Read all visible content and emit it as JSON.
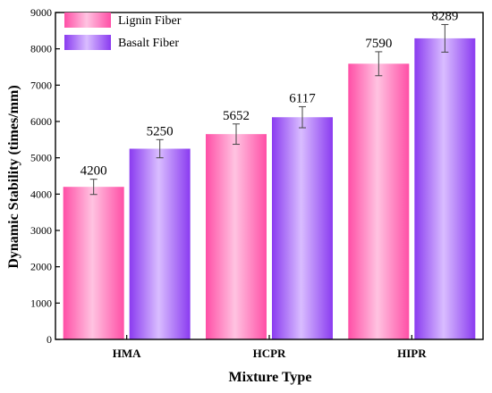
{
  "chart_data": {
    "type": "bar",
    "title": "",
    "xlabel": "Mixture Type",
    "ylabel": "Dynamic Stability (times/mm)",
    "ylim": [
      0,
      9000
    ],
    "yticks": [
      0,
      1000,
      2000,
      3000,
      4000,
      5000,
      6000,
      7000,
      8000,
      9000
    ],
    "categories": [
      "HMA",
      "HCPR",
      "HIPR"
    ],
    "series": [
      {
        "name": "Lignin Fiber",
        "values": [
          4200,
          5652,
          7590
        ],
        "labels": [
          "4200",
          "5652",
          "7590"
        ],
        "error": [
          210,
          280,
          330
        ],
        "color_dark": "#ff4fa6",
        "color_light": "#ffc3e1"
      },
      {
        "name": "Basalt Fiber",
        "values": [
          5250,
          6117,
          8289
        ],
        "labels": [
          "5250",
          "6117",
          "8289"
        ],
        "error": [
          250,
          290,
          380
        ],
        "color_dark": "#8a3bf0",
        "color_light": "#d9bdff"
      }
    ],
    "legend_position": "top-left",
    "grid": false
  }
}
